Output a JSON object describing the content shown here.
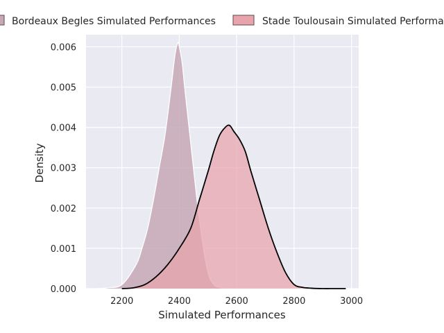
{
  "chart_data": {
    "type": "area",
    "title": "",
    "xlabel": "Simulated Performances",
    "ylabel": "Density",
    "xlim": [
      2075,
      3025
    ],
    "ylim": [
      0,
      0.0063
    ],
    "x_ticks": [
      "2200",
      "2400",
      "2600",
      "2800",
      "3000"
    ],
    "y_ticks": [
      "0.000",
      "0.001",
      "0.002",
      "0.003",
      "0.004",
      "0.005",
      "0.006"
    ],
    "grid": true,
    "legend_position": "top",
    "series": [
      {
        "name": "Bordeaux Begles Simulated Performances",
        "fill_color": "#c7a8b6",
        "stroke_color": "#ffffff",
        "x": [
          2110,
          2150,
          2200,
          2250,
          2270,
          2290,
          2310,
          2330,
          2350,
          2370,
          2385,
          2395,
          2400,
          2410,
          2420,
          2440,
          2460,
          2480,
          2500,
          2520,
          2540,
          2560,
          2580,
          2600
        ],
        "y": [
          0.0,
          2e-05,
          0.0001,
          0.0006,
          0.001,
          0.0015,
          0.0022,
          0.003,
          0.0038,
          0.0049,
          0.0058,
          0.0061,
          0.006,
          0.0056,
          0.0049,
          0.0036,
          0.0023,
          0.0012,
          0.0004,
          0.0001,
          3e-05,
          1e-05,
          0.0,
          0.0
        ]
      },
      {
        "name": "Stade Toulousain Simulated Performances",
        "fill_color": "#e8a4aa",
        "stroke_color": "#000000",
        "x": [
          2200,
          2240,
          2280,
          2320,
          2360,
          2400,
          2440,
          2470,
          2500,
          2520,
          2540,
          2560,
          2575,
          2590,
          2610,
          2630,
          2650,
          2680,
          2710,
          2740,
          2770,
          2800,
          2830,
          2860,
          2900,
          2940,
          2980
        ],
        "y": [
          0.0,
          2e-05,
          0.0001,
          0.0003,
          0.0006,
          0.001,
          0.0015,
          0.0022,
          0.0029,
          0.0034,
          0.0038,
          0.004,
          0.00405,
          0.0039,
          0.0037,
          0.0034,
          0.0029,
          0.0022,
          0.0015,
          0.0009,
          0.0004,
          0.0001,
          3e-05,
          1e-05,
          0.0,
          0.0,
          0.0
        ]
      }
    ]
  }
}
